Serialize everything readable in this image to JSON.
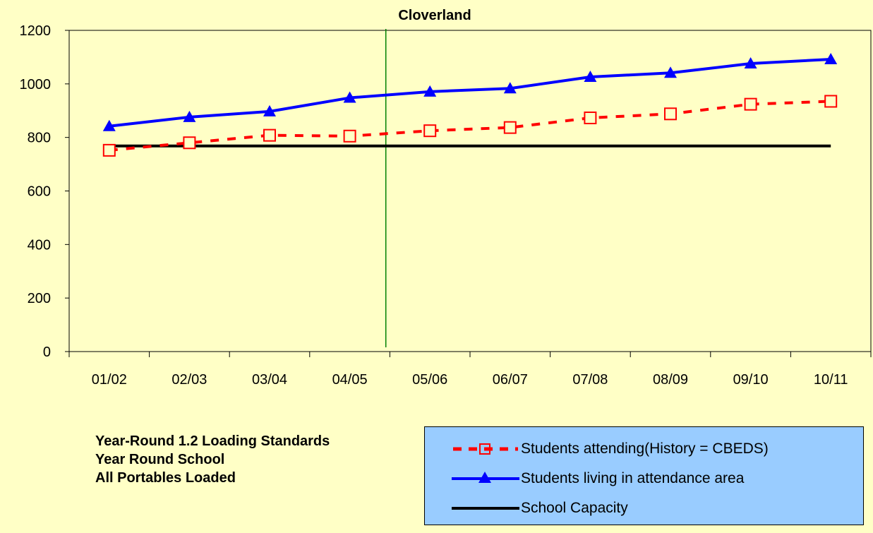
{
  "chart_data": {
    "type": "line",
    "title": "Cloverland",
    "categories": [
      "01/02",
      "02/03",
      "03/04",
      "04/05",
      "05/06",
      "06/07",
      "07/08",
      "08/09",
      "09/10",
      "10/11"
    ],
    "ylim": [
      0,
      1200
    ],
    "yticks": [
      0,
      200,
      400,
      600,
      800,
      1000,
      1200
    ],
    "grid": false,
    "vertical_marker_after_category": "04/05",
    "series": [
      {
        "name": "Students attending(History = CBEDS)",
        "color": "#FF0000",
        "style": "dashed",
        "marker": "square",
        "values": [
          752,
          780,
          808,
          805,
          825,
          837,
          873,
          888,
          924,
          935
        ]
      },
      {
        "name": "Students living in attendance area",
        "color": "#0000FF",
        "style": "solid",
        "marker": "triangle",
        "values": [
          842,
          876,
          897,
          948,
          971,
          983,
          1026,
          1041,
          1076,
          1092
        ]
      },
      {
        "name": "School Capacity",
        "color": "#000000",
        "style": "solid",
        "marker": "none",
        "values": [
          768,
          768,
          768,
          768,
          768,
          768,
          768,
          768,
          768,
          768
        ]
      }
    ]
  },
  "notes": [
    "Year-Round 1.2 Loading Standards",
    "Year Round School",
    "All Portables Loaded"
  ],
  "legend_position": "bottom-right"
}
